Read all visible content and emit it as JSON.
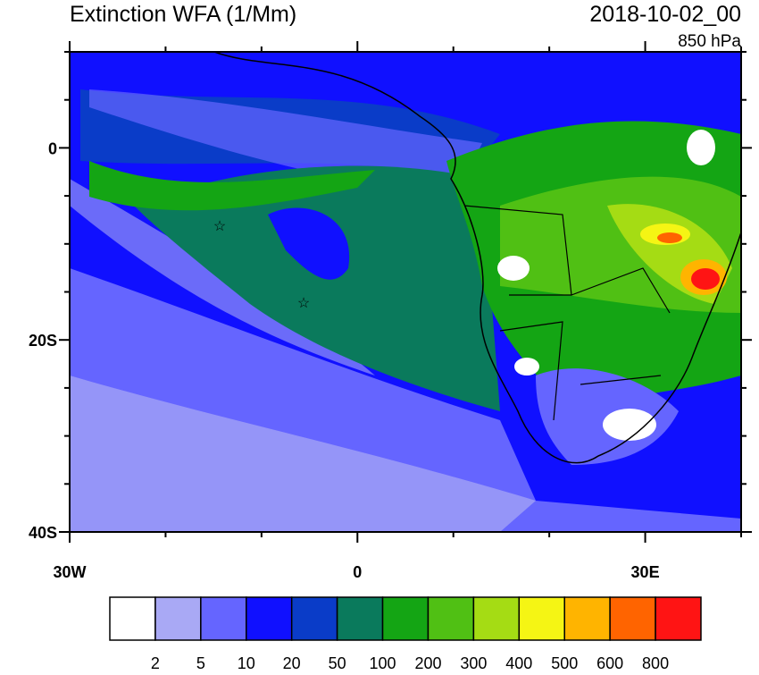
{
  "header": {
    "title": "Extinction WFA (1/Mm)",
    "date": "2018-10-02_00",
    "level": "850 hPa"
  },
  "map": {
    "xlim": [
      -30,
      40
    ],
    "ylim": [
      -40,
      10
    ],
    "xticks": [
      {
        "value": -30,
        "label": "30W"
      },
      0,
      {
        "value": 30,
        "label": "30E"
      }
    ],
    "yticks": [
      0,
      {
        "value": -20,
        "label": "20S"
      },
      {
        "value": -40,
        "label": "40S"
      }
    ],
    "xminorticks": [
      -20,
      -10,
      10,
      20,
      40
    ],
    "yminorticks": [
      10,
      5,
      -5,
      -10,
      -15,
      -25,
      -30,
      -35
    ]
  },
  "colorbar": {
    "colors": [
      "#ffffff",
      "#a9a9f5",
      "#6565ff",
      "#1010ff",
      "#0a3cc8",
      "#0a7a5c",
      "#14a514",
      "#50c014",
      "#a5dc14",
      "#f5f514",
      "#ffb400",
      "#ff6400",
      "#ff1414"
    ],
    "levels": [
      2,
      5,
      10,
      20,
      50,
      100,
      200,
      300,
      400,
      500,
      600,
      800
    ]
  }
}
